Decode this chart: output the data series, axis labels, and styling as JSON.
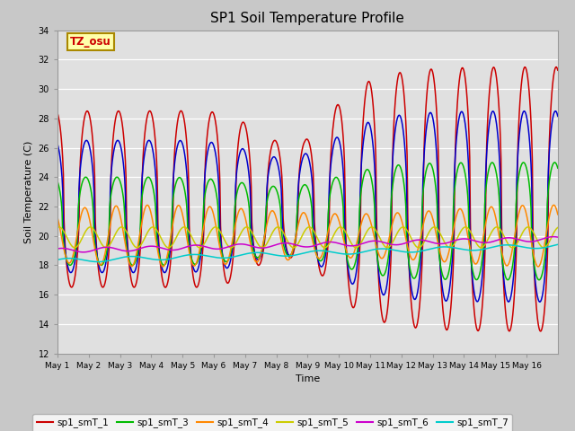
{
  "title": "SP1 Soil Temperature Profile",
  "xlabel": "Time",
  "ylabel": "Soil Temperature (C)",
  "ylim": [
    12,
    34
  ],
  "yticks": [
    12,
    14,
    16,
    18,
    20,
    22,
    24,
    26,
    28,
    30,
    32,
    34
  ],
  "fig_bg": "#c8c8c8",
  "plot_bg": "#e0e0e0",
  "annotation_text": "TZ_osu",
  "annotation_color": "#cc0000",
  "annotation_bg": "#ffffaa",
  "annotation_border": "#aa8800",
  "series_colors": [
    "#cc0000",
    "#0000cc",
    "#00bb00",
    "#ff8800",
    "#cccc00",
    "#cc00cc",
    "#00cccc"
  ],
  "series_labels": [
    "sp1_smT_1",
    "sp1_smT_2",
    "sp1_smT_3",
    "sp1_smT_4",
    "sp1_smT_5",
    "sp1_smT_6",
    "sp1_smT_7"
  ],
  "n_days": 16,
  "points_per_day": 48,
  "day_labels": [
    "May 1",
    "May 2",
    "May 3",
    "May 4",
    "May 5",
    "May 6",
    "May 7",
    "May 8",
    "May 9",
    "May 10",
    "May 11",
    "May 12",
    "May 13",
    "May 14",
    "May 15",
    "May 16"
  ]
}
